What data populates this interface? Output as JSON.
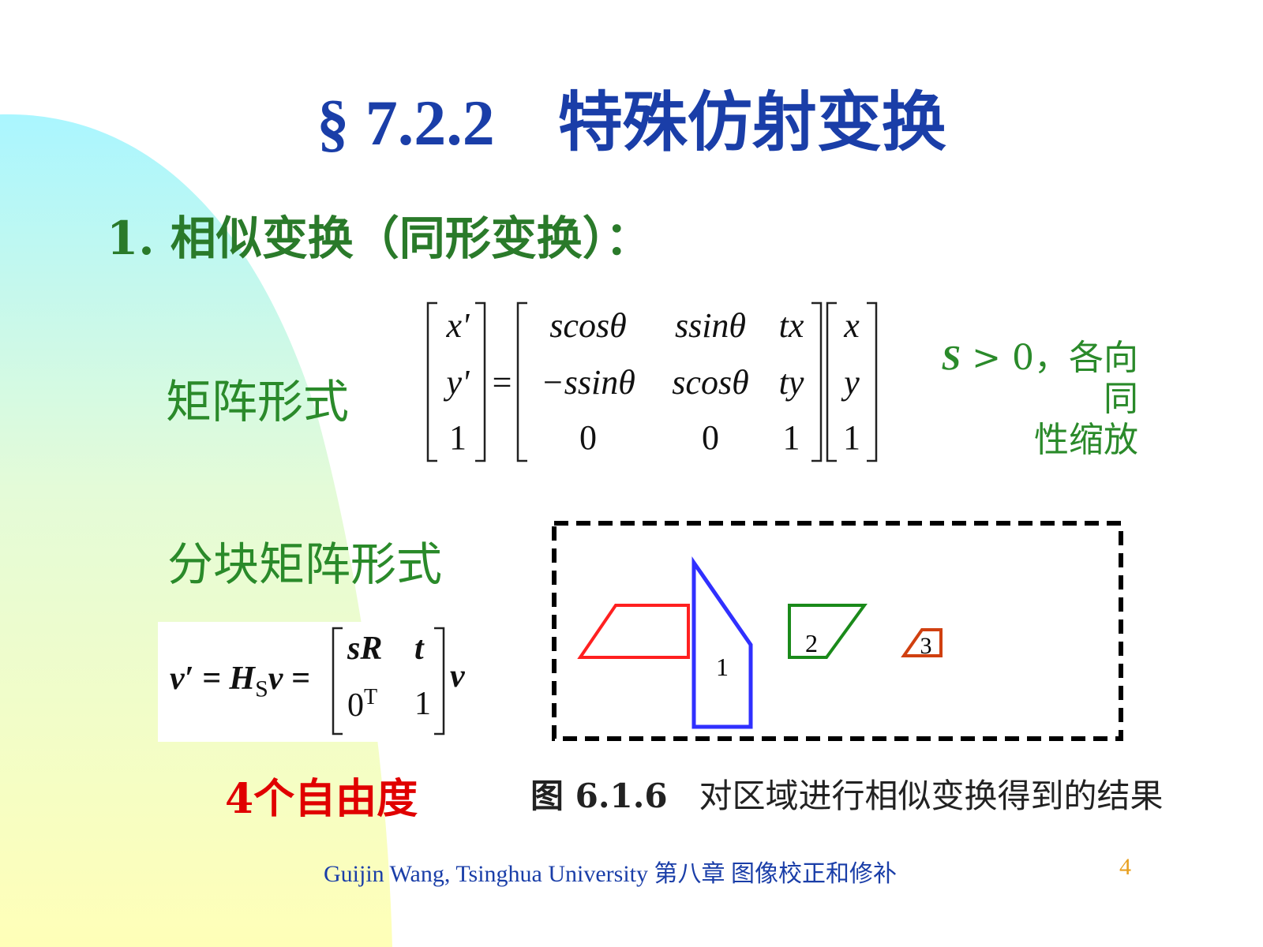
{
  "title": {
    "section": "§ 7.2.2",
    "text": "特殊仿射变换"
  },
  "heading": "1. 相似变换（同形变换）：",
  "matrix_form": {
    "label": "矩阵形式",
    "lhs": [
      "x'",
      "y'",
      "1"
    ],
    "equals": "=",
    "matrix": [
      [
        "scosθ",
        "ssinθ",
        "tx"
      ],
      [
        "−ssinθ",
        "scosθ",
        "ty"
      ],
      [
        "0",
        "0",
        "1"
      ]
    ],
    "rhs": [
      "x",
      "y",
      "1"
    ],
    "note_line1_var": "S",
    "note_line1_rest": " > 0，各向同",
    "note_line2": "性缩放"
  },
  "block_form": {
    "label": "分块矩阵形式",
    "lhs": "v′ = H",
    "subscript": "S",
    "mid": "v =",
    "block": [
      [
        "sR",
        "t"
      ],
      [
        "0",
        "1"
      ]
    ],
    "superscript_T": "T",
    "rhs": "v"
  },
  "dof": "4个自由度",
  "figure": {
    "shape_labels": [
      "1",
      "2",
      "3"
    ],
    "colors": {
      "original": "#ff2020",
      "shape1": "#3030ff",
      "shape2": "#1a8a1a",
      "shape3": "#d04010"
    },
    "caption_num": "图 6.1.6",
    "caption_text": "对区域进行相似变换得到的结果"
  },
  "footer": "Guijin Wang, Tsinghua University 第八章  图像校正和修补",
  "page_number": "4"
}
